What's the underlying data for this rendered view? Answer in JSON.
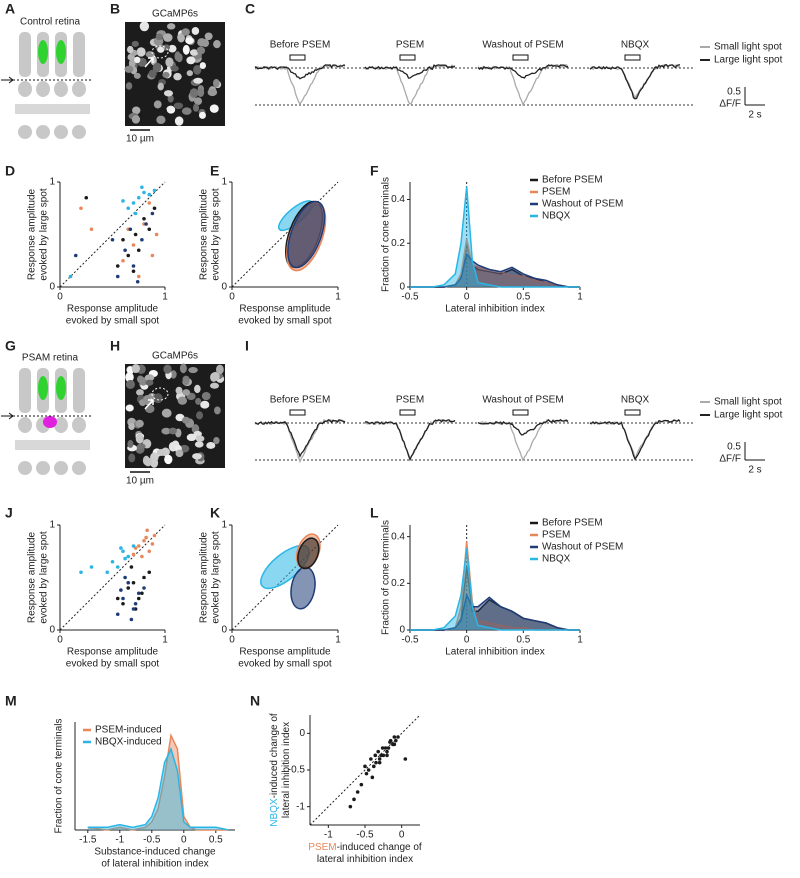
{
  "panels": {
    "A": {
      "letter": "A",
      "label": "Control retina"
    },
    "B": {
      "letter": "B",
      "label": "GCaMP6s",
      "scale": "10 µm"
    },
    "C": {
      "letter": "C",
      "conditions": [
        {
          "text": "Before PSEM",
          "color": "#222222"
        },
        {
          "text": "PSEM",
          "color": "#e8875a"
        },
        {
          "text": "Washout of PSEM",
          "color": "#1f3c78"
        },
        {
          "text": "NBQX",
          "color": "#29b6e6"
        }
      ],
      "legend": [
        {
          "name": "Small light spot",
          "color": "#aaaaaa"
        },
        {
          "name": "Large light spot",
          "color": "#222222"
        }
      ],
      "scale_y": "0.5",
      "scale_y_unit": "ΔF/F",
      "scale_x": "2 s"
    },
    "D": {
      "letter": "D",
      "type": "scatter",
      "xlim": [
        0,
        1
      ],
      "ylim": [
        0,
        1
      ],
      "xticks": [
        0,
        1
      ],
      "yticks": [
        0,
        1
      ],
      "xlabel": [
        "Response amplitude",
        "evoked by small spot"
      ],
      "ylabel": [
        "Response amplitude",
        "evoked by large spot"
      ],
      "series": [
        {
          "color": "#1a1a1a",
          "x": [
            0.72,
            0.65,
            0.8,
            0.55,
            0.7,
            0.85,
            0.6,
            0.75,
            0.9,
            0.25
          ],
          "y": [
            0.5,
            0.3,
            0.65,
            0.2,
            0.15,
            0.55,
            0.45,
            0.35,
            0.75,
            0.85
          ]
        },
        {
          "color": "#e8875a",
          "x": [
            0.8,
            0.7,
            0.88,
            0.6,
            0.75,
            0.92,
            0.65,
            0.2,
            0.3,
            0.85
          ],
          "y": [
            0.6,
            0.4,
            0.3,
            0.25,
            0.1,
            0.5,
            0.55,
            0.75,
            0.55,
            0.8
          ]
        },
        {
          "color": "#1f3c78",
          "x": [
            0.62,
            0.7,
            0.78,
            0.55,
            0.82,
            0.67,
            0.74,
            0.5,
            0.88,
            0.15
          ],
          "y": [
            0.35,
            0.2,
            0.45,
            0.1,
            0.6,
            0.55,
            0.05,
            0.45,
            0.7,
            0.3
          ]
        },
        {
          "color": "#29b6e6",
          "x": [
            0.7,
            0.75,
            0.8,
            0.65,
            0.85,
            0.72,
            0.6,
            0.78,
            0.9,
            0.1
          ],
          "y": [
            0.8,
            0.85,
            0.9,
            0.75,
            0.88,
            0.7,
            0.82,
            0.95,
            0.92,
            0.1
          ]
        }
      ]
    },
    "E": {
      "letter": "E",
      "type": "ellipse",
      "xlim": [
        0,
        1
      ],
      "ylim": [
        0,
        1
      ],
      "xticks": [
        0,
        1
      ],
      "yticks": [
        0,
        1
      ],
      "xlabel": [
        "Response amplitude",
        "evoked by small spot"
      ],
      "ylabel": [
        "Response amplitude",
        "evoked by large spot"
      ],
      "series": [
        {
          "color": "#29b6e6",
          "cx": 0.6,
          "cy": 0.68,
          "rx": 0.2,
          "ry": 0.07,
          "angle": -40
        },
        {
          "color": "#1a1a1a",
          "cx": 0.68,
          "cy": 0.5,
          "rx": 0.14,
          "ry": 0.33,
          "angle": 20
        },
        {
          "color": "#e8875a",
          "cx": 0.7,
          "cy": 0.48,
          "rx": 0.15,
          "ry": 0.34,
          "angle": 20
        },
        {
          "color": "#1f3c78",
          "cx": 0.7,
          "cy": 0.5,
          "rx": 0.14,
          "ry": 0.33,
          "angle": 20
        }
      ]
    },
    "F": {
      "letter": "F",
      "type": "area",
      "xlim": [
        -0.5,
        1
      ],
      "ylim": [
        0,
        0.48
      ],
      "xticks": [
        -0.5,
        0,
        0.5,
        1
      ],
      "yticks": [
        0,
        0.2,
        0.4
      ],
      "reference_x": 0,
      "xlabel": [
        "Lateral inhibition index"
      ],
      "ylabel": [
        "Fraction of cone terminals"
      ],
      "x": [
        -0.5,
        -0.4,
        -0.3,
        -0.2,
        -0.1,
        -0.05,
        0,
        0.05,
        0.1,
        0.2,
        0.3,
        0.4,
        0.5,
        0.6,
        0.7,
        0.8,
        0.9,
        1
      ],
      "series": [
        {
          "name": "Before PSEM",
          "color": "#1a1a1a",
          "values": [
            0,
            0,
            0,
            0,
            0.01,
            0.05,
            0.2,
            0.1,
            0.08,
            0.07,
            0.06,
            0.08,
            0.05,
            0.04,
            0.02,
            0.01,
            0,
            0
          ]
        },
        {
          "name": "PSEM",
          "color": "#e8875a",
          "values": [
            0,
            0,
            0,
            0,
            0.01,
            0.06,
            0.22,
            0.1,
            0.09,
            0.08,
            0.07,
            0.05,
            0.05,
            0.03,
            0.02,
            0.01,
            0,
            0
          ]
        },
        {
          "name": "Washout of PSEM",
          "color": "#1f3c78",
          "values": [
            0,
            0,
            0,
            0,
            0.01,
            0.04,
            0.15,
            0.12,
            0.1,
            0.08,
            0.07,
            0.09,
            0.06,
            0.04,
            0.03,
            0.01,
            0,
            0
          ]
        },
        {
          "name": "NBQX",
          "color": "#29b6e6",
          "values": [
            0,
            0,
            0,
            0.01,
            0.06,
            0.2,
            0.46,
            0.12,
            0.02,
            0.01,
            0,
            0,
            0,
            0,
            0,
            0,
            0,
            0
          ]
        }
      ]
    },
    "G": {
      "letter": "G",
      "label": "PSAM retina"
    },
    "H": {
      "letter": "H",
      "label": "GCaMP6s",
      "scale": "10 µm"
    },
    "I": {
      "letter": "I",
      "conditions": [
        {
          "text": "Before PSEM",
          "color": "#222222"
        },
        {
          "text": "PSEM",
          "color": "#e8875a"
        },
        {
          "text": "Washout of PSEM",
          "color": "#1f3c78"
        },
        {
          "text": "NBQX",
          "color": "#29b6e6"
        }
      ],
      "legend": [
        {
          "name": "Small light spot",
          "color": "#aaaaaa"
        },
        {
          "name": "Large light spot",
          "color": "#222222"
        }
      ],
      "scale_y": "0.5",
      "scale_y_unit": "ΔF/F",
      "scale_x": "2 s"
    },
    "J": {
      "letter": "J",
      "type": "scatter",
      "xlim": [
        0,
        1
      ],
      "ylim": [
        0,
        1
      ],
      "xticks": [
        0,
        1
      ],
      "yticks": [
        0,
        1
      ],
      "xlabel": [
        "Response amplitude",
        "evoked by small spot"
      ],
      "ylabel": [
        "Response amplitude",
        "evoked by large spot"
      ],
      "series": [
        {
          "color": "#1a1a1a",
          "x": [
            0.7,
            0.75,
            0.65,
            0.8,
            0.6,
            0.72,
            0.85,
            0.68,
            0.78,
            0.55
          ],
          "y": [
            0.45,
            0.3,
            0.4,
            0.5,
            0.25,
            0.2,
            0.55,
            0.6,
            0.35,
            0.3
          ]
        },
        {
          "color": "#e8875a",
          "x": [
            0.75,
            0.8,
            0.85,
            0.7,
            0.9,
            0.78,
            0.82,
            0.88,
            0.72,
            0.83
          ],
          "y": [
            0.8,
            0.85,
            0.75,
            0.72,
            0.9,
            0.7,
            0.88,
            0.82,
            0.78,
            0.95
          ]
        },
        {
          "color": "#1f3c78",
          "x": [
            0.6,
            0.7,
            0.65,
            0.75,
            0.55,
            0.68,
            0.8,
            0.62,
            0.72,
            0.58
          ],
          "y": [
            0.3,
            0.2,
            0.45,
            0.35,
            0.15,
            0.1,
            0.4,
            0.5,
            0.25,
            0.38
          ]
        },
        {
          "color": "#29b6e6",
          "x": [
            0.5,
            0.6,
            0.55,
            0.45,
            0.65,
            0.7,
            0.3,
            0.2,
            0.58,
            0.62
          ],
          "y": [
            0.65,
            0.75,
            0.6,
            0.55,
            0.7,
            0.8,
            0.6,
            0.55,
            0.78,
            0.68
          ]
        }
      ]
    },
    "K": {
      "letter": "K",
      "type": "ellipse",
      "xlim": [
        0,
        1
      ],
      "ylim": [
        0,
        1
      ],
      "xticks": [
        0,
        1
      ],
      "yticks": [
        0,
        1
      ],
      "xlabel": [
        "Response amplitude",
        "evoked by small spot"
      ],
      "ylabel": [
        "Response amplitude",
        "evoked by large spot"
      ],
      "series": [
        {
          "color": "#29b6e6",
          "cx": 0.5,
          "cy": 0.6,
          "rx": 0.28,
          "ry": 0.12,
          "angle": -40
        },
        {
          "color": "#1f3c78",
          "cx": 0.67,
          "cy": 0.4,
          "rx": 0.11,
          "ry": 0.2,
          "angle": 10
        },
        {
          "color": "#e8875a",
          "cx": 0.72,
          "cy": 0.75,
          "rx": 0.1,
          "ry": 0.17,
          "angle": 20
        },
        {
          "color": "#1a1a1a",
          "cx": 0.72,
          "cy": 0.73,
          "rx": 0.09,
          "ry": 0.15,
          "angle": 20
        }
      ]
    },
    "L": {
      "letter": "L",
      "type": "area",
      "xlim": [
        -0.5,
        1
      ],
      "ylim": [
        0,
        0.45
      ],
      "xticks": [
        -0.5,
        0,
        0.5,
        1
      ],
      "yticks": [
        0,
        0.2,
        0.4
      ],
      "reference_x": 0,
      "xlabel": [
        "Lateral inhibition index"
      ],
      "ylabel": [
        "Fraction of cone terminals"
      ],
      "x": [
        -0.5,
        -0.4,
        -0.3,
        -0.2,
        -0.1,
        -0.05,
        0,
        0.05,
        0.1,
        0.2,
        0.3,
        0.4,
        0.5,
        0.6,
        0.7,
        0.8,
        0.9,
        1
      ],
      "series": [
        {
          "name": "Before PSEM",
          "color": "#1a1a1a",
          "values": [
            0,
            0,
            0,
            0,
            0.01,
            0.05,
            0.27,
            0.08,
            0.08,
            0.13,
            0.1,
            0.08,
            0.05,
            0.04,
            0.03,
            0.01,
            0,
            0
          ]
        },
        {
          "name": "PSEM",
          "color": "#e8875a",
          "values": [
            0,
            0,
            0,
            0,
            0.01,
            0.1,
            0.38,
            0.12,
            0.04,
            0.03,
            0.02,
            0.01,
            0.01,
            0,
            0,
            0,
            0,
            0
          ]
        },
        {
          "name": "Washout of PSEM",
          "color": "#1f3c78",
          "values": [
            0,
            0,
            0,
            0,
            0.01,
            0.04,
            0.15,
            0.1,
            0.1,
            0.14,
            0.1,
            0.08,
            0.05,
            0.04,
            0.03,
            0.01,
            0,
            0
          ]
        },
        {
          "name": "NBQX",
          "color": "#29b6e6",
          "values": [
            0,
            0,
            0,
            0.01,
            0.06,
            0.15,
            0.35,
            0.1,
            0.02,
            0.01,
            0,
            0,
            0,
            0,
            0,
            0,
            0,
            0
          ]
        }
      ]
    },
    "M": {
      "letter": "M",
      "type": "area",
      "xlim": [
        -1.7,
        0.8
      ],
      "ylim": [
        0,
        0.4
      ],
      "xticks": [
        -1.5,
        -1,
        -0.5,
        0,
        0.5
      ],
      "xlabel": [
        "Substance-induced change",
        "of lateral inhibition index"
      ],
      "ylabel": [
        "Fraction of cone terminals"
      ],
      "x": [
        -1.5,
        -1.2,
        -1,
        -0.8,
        -0.6,
        -0.5,
        -0.4,
        -0.3,
        -0.2,
        -0.1,
        0,
        0.1,
        0.2,
        0.5,
        0.7
      ],
      "series": [
        {
          "name": "PSEM-induced",
          "color": "#e8875a",
          "values": [
            0.01,
            0,
            0.01,
            0,
            0.01,
            0.03,
            0.08,
            0.2,
            0.35,
            0.3,
            0.05,
            0.01,
            0,
            0,
            0
          ]
        },
        {
          "name": "NBQX-induced",
          "color": "#29b6e6",
          "values": [
            0.01,
            0.01,
            0.02,
            0.01,
            0.02,
            0.05,
            0.12,
            0.25,
            0.3,
            0.22,
            0.03,
            0.01,
            0.01,
            0.01,
            0
          ]
        }
      ]
    },
    "N": {
      "letter": "N",
      "type": "scatter",
      "xlim": [
        -1.25,
        0.25
      ],
      "ylim": [
        -1.25,
        0.25
      ],
      "xticks": [
        -1,
        -0.5,
        0
      ],
      "yticks": [
        -1,
        -0.5,
        0
      ],
      "xlabel": [
        [
          {
            "text": "PSEM",
            "color": "#e8875a"
          },
          {
            "text": "-induced change of",
            "color": "#222222"
          }
        ],
        [
          {
            "text": "lateral inhibition index",
            "color": "#222222"
          }
        ]
      ],
      "ylabel": [
        [
          {
            "text": "NBQX",
            "color": "#29b6e6"
          },
          {
            "text": "-induced change of",
            "color": "#222222"
          }
        ],
        [
          {
            "text": "lateral inhibition index",
            "color": "#222222"
          }
        ]
      ],
      "series": [
        {
          "color": "#1a1a1a",
          "x": [
            -0.1,
            -0.2,
            -0.3,
            -0.15,
            -0.25,
            -0.35,
            -0.4,
            -0.05,
            -0.18,
            -0.28,
            -0.45,
            -0.5,
            -0.55,
            -0.6,
            -0.22,
            -0.12,
            -0.32,
            -0.38,
            -0.08,
            -0.42,
            -0.65,
            -0.7,
            -0.3,
            -0.2,
            -0.1,
            -0.48,
            -0.26,
            -0.16,
            -0.36,
            0.05
          ],
          "y": [
            -0.15,
            -0.25,
            -0.35,
            -0.1,
            -0.3,
            -0.4,
            -0.6,
            -0.05,
            -0.2,
            -0.3,
            -0.5,
            -0.45,
            -0.7,
            -0.8,
            -0.2,
            -0.15,
            -0.25,
            -0.45,
            -0.1,
            -0.35,
            -0.9,
            -1,
            -0.4,
            -0.3,
            -0.05,
            -0.55,
            -0.2,
            -0.12,
            -0.3,
            -0.35
          ]
        }
      ]
    }
  }
}
